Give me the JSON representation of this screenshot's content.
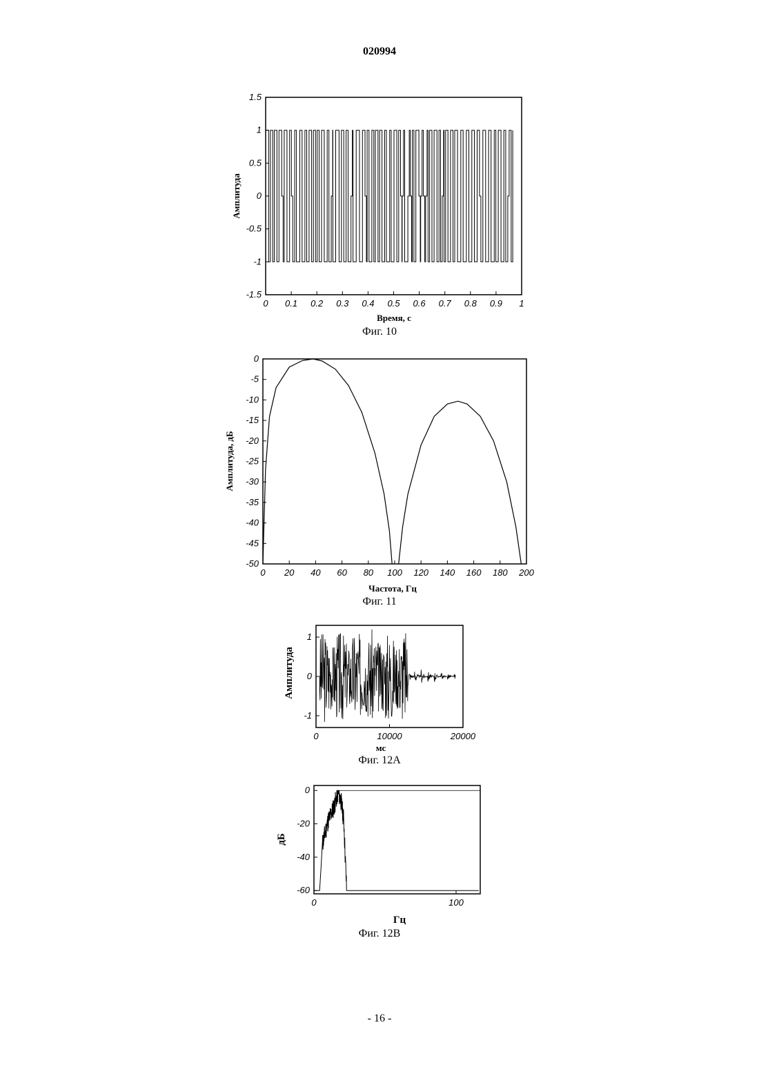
{
  "page": {
    "header": "020994",
    "footer": "- 16 -"
  },
  "chart_data": [
    {
      "type": "line",
      "caption": "Фиг. 10",
      "xlabel": "Время, с",
      "ylabel": "Амплитуда",
      "xlim": [
        0,
        1
      ],
      "ylim": [
        -1.5,
        1.5
      ],
      "xticks": [
        "0",
        "0.1",
        "0.2",
        "0.3",
        "0.4",
        "0.5",
        "0.6",
        "0.7",
        "0.8",
        "0.9",
        "1"
      ],
      "yticks": [
        "1.5",
        "1",
        "0.5",
        "0",
        "-0.5",
        "-1",
        "-1.5"
      ],
      "series": [
        {
          "style": "rectangular pulse train",
          "values_range": [
            -1,
            1
          ],
          "pulse_count": 52
        }
      ]
    },
    {
      "type": "line",
      "caption": "Фиг. 11",
      "xlabel": "Частота, Гц",
      "ylabel": "Амплитуда, дБ",
      "xlim": [
        0,
        200
      ],
      "ylim": [
        -50,
        0
      ],
      "xticks": [
        "0",
        "20",
        "40",
        "60",
        "80",
        "100",
        "120",
        "140",
        "160",
        "180",
        "200"
      ],
      "yticks": [
        "0",
        "-5",
        "-10",
        "-15",
        "-20",
        "-25",
        "-30",
        "-35",
        "-40",
        "-45",
        "-50"
      ],
      "series": [
        {
          "x": [
            0,
            2,
            5,
            10,
            20,
            30,
            38,
            45,
            55,
            65,
            75,
            85,
            92,
            96,
            98
          ],
          "values": [
            -50,
            -27,
            -14,
            -7,
            -2,
            -0.4,
            0,
            -0.5,
            -2.5,
            -6.5,
            -13,
            -23,
            -33,
            -42,
            -50
          ]
        },
        {
          "x": [
            103,
            106,
            110,
            120,
            130,
            140,
            148,
            155,
            165,
            175,
            185,
            192,
            196
          ],
          "values": [
            -50,
            -41,
            -33,
            -21,
            -14,
            -11,
            -10.3,
            -11,
            -14,
            -20,
            -30,
            -41,
            -50
          ]
        }
      ]
    },
    {
      "type": "line",
      "caption": "Фиг. 12А",
      "xlabel": "мс",
      "ylabel": "Амплитуда",
      "xlim": [
        0,
        20000
      ],
      "ylim": [
        -1.3,
        1.3
      ],
      "xticks": [
        "0",
        "10000",
        "20000"
      ],
      "yticks": [
        "1",
        "0",
        "-1"
      ],
      "series": [
        {
          "style": "dense noise burst",
          "active_until": 12500,
          "amplitude": 1.2
        }
      ]
    },
    {
      "type": "line",
      "caption": "Фиг. 12В",
      "xlabel": "Гц",
      "ylabel": "дБ",
      "xlim": [
        0,
        117
      ],
      "ylim": [
        -62,
        3
      ],
      "xticks": [
        "0",
        "100"
      ],
      "yticks": [
        "0",
        "-20",
        "-40",
        "-60"
      ],
      "series": [
        {
          "x": [
            0,
            4,
            6,
            10,
            14,
            17,
            19,
            21,
            23,
            117
          ],
          "values": [
            -60,
            -60,
            -32,
            -18,
            -10,
            -1,
            -6,
            -18,
            -60,
            -60
          ]
        },
        {
          "x": [
            17,
            117
          ],
          "values": [
            0,
            0
          ]
        }
      ]
    }
  ]
}
